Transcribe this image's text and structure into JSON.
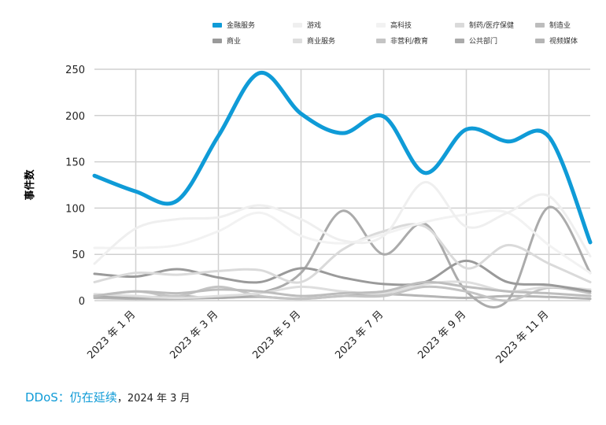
{
  "chart_data": {
    "type": "line",
    "title": "DDoS：仍在延续",
    "subtitle": "，2024 年 3 月",
    "y_label": "事件数",
    "categories": [
      null,
      "2023 年 1 月",
      null,
      "2023 年 3 月",
      null,
      "2023 年 5 月",
      null,
      "2023 年 7 月",
      null,
      "2023 年 9 月",
      null,
      "2023 年 11 月",
      null
    ],
    "ylim": [
      0,
      250
    ],
    "yticks": [
      0,
      50,
      100,
      150,
      200,
      250
    ],
    "grid": true,
    "series": [
      {
        "name": "金融服务",
        "color": "#0f9bd7",
        "values": [
          135,
          118,
          108,
          178,
          246,
          202,
          181,
          199,
          138,
          185,
          172,
          177,
          63
        ]
      },
      {
        "name": "游戏",
        "color": "#efefef",
        "values": [
          40,
          78,
          88,
          90,
          103,
          88,
          65,
          70,
          128,
          80,
          95,
          113,
          48
        ]
      },
      {
        "name": "高科技",
        "color": "#f2f2f2",
        "values": [
          57,
          57,
          60,
          75,
          95,
          70,
          62,
          72,
          85,
          93,
          95,
          60,
          30
        ]
      },
      {
        "name": "制药/医疗保健",
        "color": "#dadada",
        "values": [
          20,
          30,
          28,
          32,
          33,
          20,
          55,
          75,
          80,
          35,
          60,
          40,
          20
        ]
      },
      {
        "name": "制造业",
        "color": "#bdbdbd",
        "values": [
          5,
          10,
          8,
          12,
          10,
          5,
          8,
          10,
          20,
          15,
          10,
          8,
          5
        ]
      },
      {
        "name": "商业",
        "color": "#9a9a9a",
        "values": [
          29,
          26,
          34,
          25,
          20,
          35,
          25,
          18,
          20,
          43,
          20,
          17,
          10
        ]
      },
      {
        "name": "商业服务",
        "color": "#dedede",
        "values": [
          7,
          5,
          3,
          5,
          8,
          15,
          10,
          8,
          18,
          20,
          10,
          15,
          12
        ]
      },
      {
        "name": "非营利/教育",
        "color": "#c4c4c4",
        "values": [
          5,
          10,
          5,
          15,
          5,
          2,
          5,
          5,
          15,
          10,
          0,
          14,
          8
        ]
      },
      {
        "name": "公共部门",
        "color": "#ababab",
        "values": [
          5,
          3,
          5,
          3,
          8,
          30,
          97,
          50,
          83,
          10,
          0,
          101,
          30
        ]
      },
      {
        "name": "视频媒体",
        "color": "#b5b5b5",
        "values": [
          3,
          2,
          2,
          3,
          4,
          2,
          5,
          7,
          5,
          3,
          5,
          4,
          2
        ]
      }
    ]
  }
}
